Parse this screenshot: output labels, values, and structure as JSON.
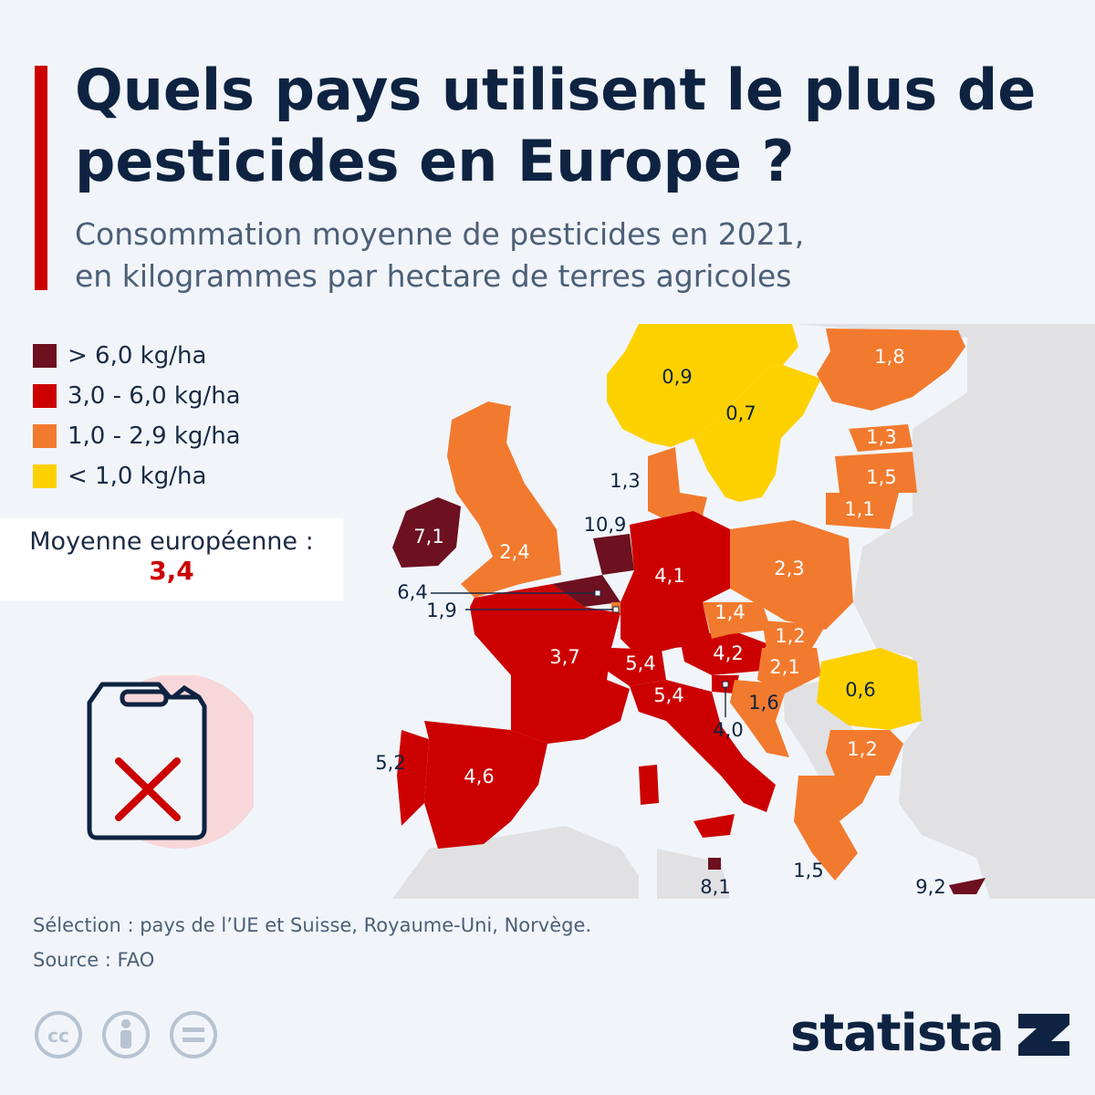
{
  "header": {
    "title": "Quels pays utilisent le plus de pesticides en Europe ?",
    "subtitle_line1": "Consommation moyenne de pesticides en 2021,",
    "subtitle_line2": "en kilogrammes par hectare de terres agricoles"
  },
  "legend": [
    {
      "label": "> 6,0 kg/ha",
      "color": "#6d1020"
    },
    {
      "label": "3,0 - 6,0 kg/ha",
      "color": "#cc0000"
    },
    {
      "label": "1,0 - 2,9 kg/ha",
      "color": "#f27a2e"
    },
    {
      "label": "< 1,0 kg/ha",
      "color": "#fdd100"
    }
  ],
  "average": {
    "label": "Moyenne européenne :",
    "value": "3,4"
  },
  "map_data": {
    "regions": [
      {
        "country": "Norvège",
        "value": "0,9",
        "value_num": 0.9
      },
      {
        "country": "Suède",
        "value": "0,7",
        "value_num": 0.7
      },
      {
        "country": "Finlande",
        "value": "1,8",
        "value_num": 1.8
      },
      {
        "country": "Estonie",
        "value": "1,3",
        "value_num": 1.3
      },
      {
        "country": "Lettonie",
        "value": "1,5",
        "value_num": 1.5
      },
      {
        "country": "Lituanie",
        "value": "1,1",
        "value_num": 1.1
      },
      {
        "country": "Danemark",
        "value": "1,3",
        "value_num": 1.3
      },
      {
        "country": "Irlande",
        "value": "7,1",
        "value_num": 7.1
      },
      {
        "country": "Royaume-Uni",
        "value": "2,4",
        "value_num": 2.4
      },
      {
        "country": "Pays-Bas",
        "value": "10,9",
        "value_num": 10.9
      },
      {
        "country": "Belgique",
        "value": "6,4",
        "value_num": 6.4
      },
      {
        "country": "Luxembourg",
        "value": "1,9",
        "value_num": 1.9
      },
      {
        "country": "Allemagne",
        "value": "4,1",
        "value_num": 4.1
      },
      {
        "country": "Pologne",
        "value": "2,3",
        "value_num": 2.3
      },
      {
        "country": "Tchéquie",
        "value": "1,4",
        "value_num": 1.4
      },
      {
        "country": "Slovaquie",
        "value": "1,2",
        "value_num": 1.2
      },
      {
        "country": "Autriche",
        "value": "4,2",
        "value_num": 4.2
      },
      {
        "country": "Hongrie",
        "value": "2,1",
        "value_num": 2.1
      },
      {
        "country": "France",
        "value": "3,7",
        "value_num": 3.7
      },
      {
        "country": "Suisse",
        "value": "5,4",
        "value_num": 5.4
      },
      {
        "country": "Italie",
        "value": "5,4",
        "value_num": 5.4
      },
      {
        "country": "Slovénie",
        "value": "4,0",
        "value_num": 4.0
      },
      {
        "country": "Croatie",
        "value": "1,6",
        "value_num": 1.6
      },
      {
        "country": "Roumanie",
        "value": "0,6",
        "value_num": 0.6
      },
      {
        "country": "Bulgarie",
        "value": "1,2",
        "value_num": 1.2
      },
      {
        "country": "Portugal",
        "value": "5,2",
        "value_num": 5.2
      },
      {
        "country": "Espagne",
        "value": "4,6",
        "value_num": 4.6
      },
      {
        "country": "Malte",
        "value": "8,1",
        "value_num": 8.1
      },
      {
        "country": "Grèce",
        "value": "1,5",
        "value_num": 1.5
      },
      {
        "country": "Chypre",
        "value": "9,2",
        "value_num": 9.2
      }
    ]
  },
  "footer": {
    "selection": "Sélection : pays de l’UE et Suisse, Royaume-Uni, Norvège.",
    "source": "Source : FAO",
    "brand": "statista"
  },
  "icons": [
    "canister-x-icon",
    "cc-icon",
    "attribution-icon",
    "noderivs-icon",
    "statista-logo-icon"
  ]
}
